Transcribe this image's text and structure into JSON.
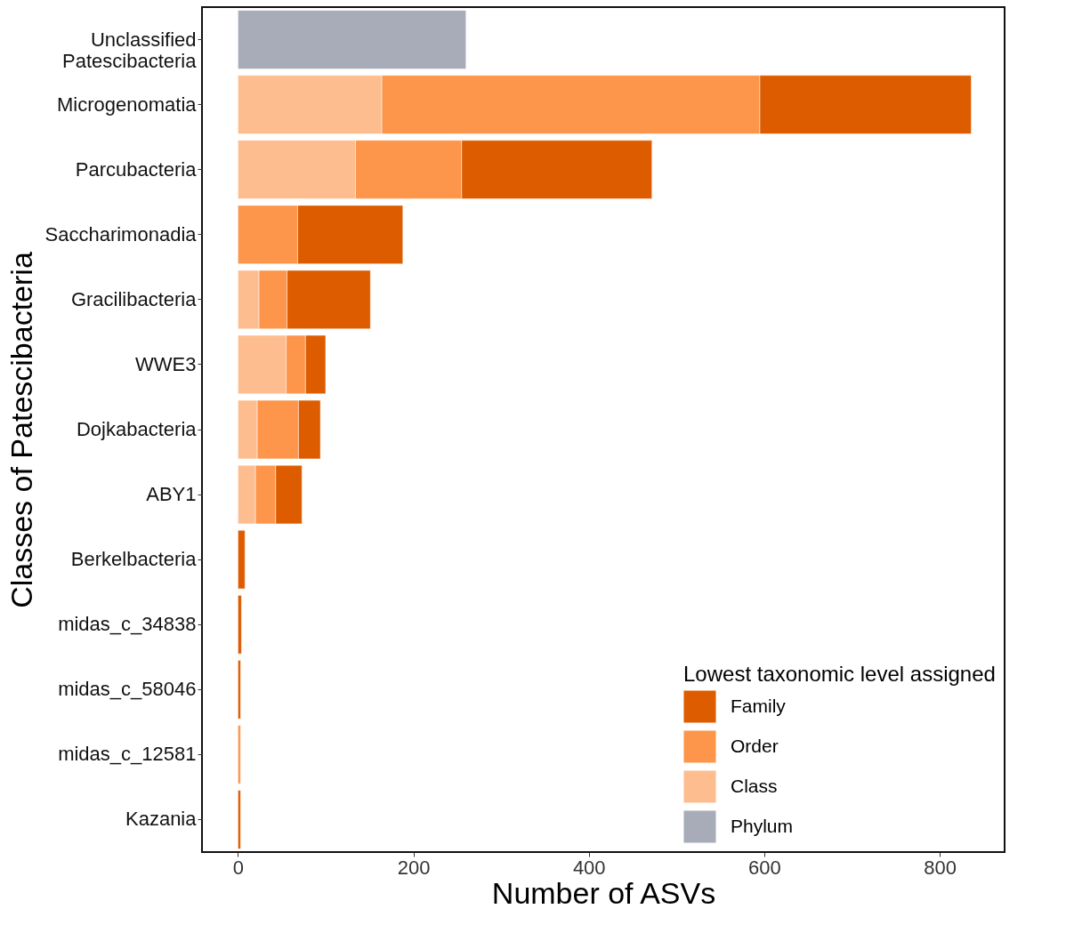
{
  "chart_data": {
    "type": "bar",
    "orientation": "horizontal",
    "stacked": true,
    "categories": [
      "Unclassified\nPatescibacteria",
      "Microgenomatia",
      "Parcubacteria",
      "Saccharimonadia",
      "Gracilibacteria",
      "WWE3",
      "Dojkabacteria",
      "ABY1",
      "Berkelbacteria",
      "midas_c_34838",
      "midas_c_58046",
      "midas_c_12581",
      "Kazania"
    ],
    "series": [
      {
        "name": "Phylum",
        "color": "#a7acb8",
        "values": [
          260,
          null,
          null,
          null,
          null,
          null,
          null,
          null,
          null,
          null,
          null,
          null,
          null
        ]
      },
      {
        "name": "Class",
        "color": "#fdbd8f",
        "values": [
          null,
          164,
          134,
          null,
          24,
          55,
          22,
          20,
          null,
          null,
          null,
          null,
          null
        ]
      },
      {
        "name": "Order",
        "color": "#fd954b",
        "values": [
          null,
          431,
          121,
          68,
          32,
          22,
          47,
          23,
          null,
          null,
          null,
          3,
          null
        ]
      },
      {
        "name": "Family",
        "color": "#dd5c00",
        "values": [
          null,
          241,
          217,
          120,
          95,
          23,
          25,
          30,
          8,
          4,
          3,
          null,
          3
        ]
      }
    ],
    "xlabel": "Number of ASVs",
    "ylabel": "Classes of Patescibacteria",
    "legend_title": "Lowest taxonomic level assigned",
    "xlim": [
      -41,
      874
    ],
    "xticks": [
      0,
      200,
      400,
      600,
      800
    ],
    "grid": false,
    "legend": "bottom right"
  }
}
